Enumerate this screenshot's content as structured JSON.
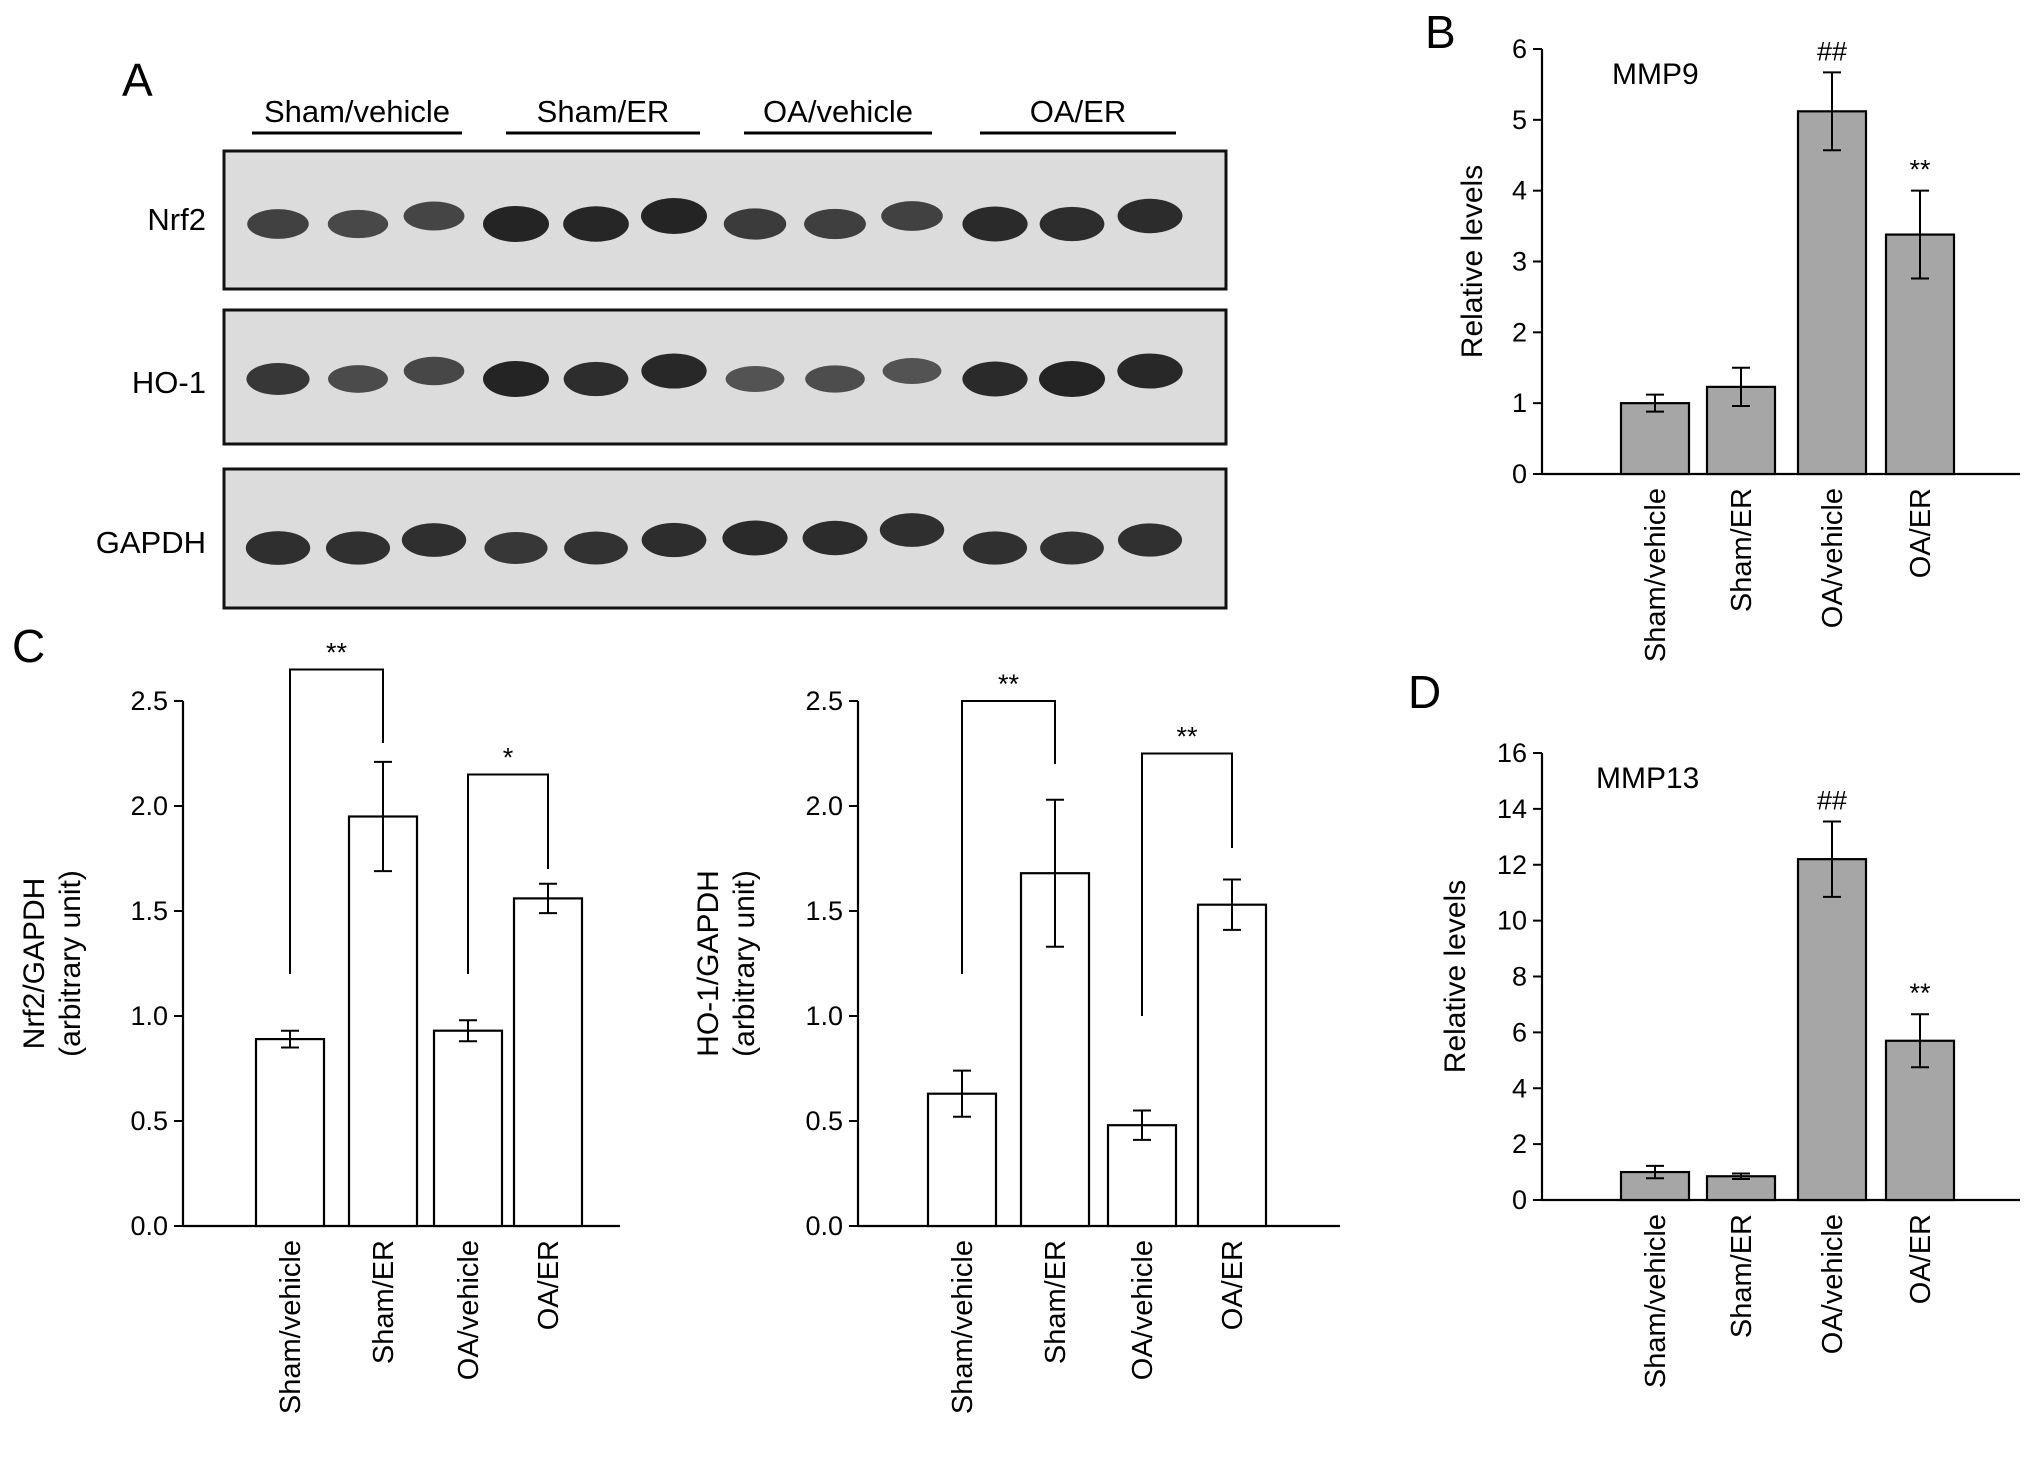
{
  "panels": {
    "a": "A",
    "b": "B",
    "c": "C",
    "d": "D"
  },
  "blot": {
    "groups": [
      "Sham/vehicle",
      "Sham/ER",
      "OA/vehicle",
      "OA/ER"
    ],
    "rows": [
      {
        "name": "Nrf2",
        "intensity": [
          0.72,
          0.65,
          0.68,
          1.0,
          0.98,
          1.0,
          0.78,
          0.74,
          0.72,
          0.95,
          0.92,
          0.93
        ]
      },
      {
        "name": "HO-1",
        "intensity": [
          0.82,
          0.62,
          0.66,
          1.0,
          0.92,
          0.96,
          0.55,
          0.6,
          0.55,
          0.95,
          1.0,
          0.96
        ]
      },
      {
        "name": "GAPDH",
        "intensity": [
          0.9,
          0.88,
          0.9,
          0.82,
          0.86,
          0.92,
          0.95,
          0.93,
          0.9,
          0.88,
          0.86,
          0.88
        ]
      }
    ]
  },
  "chart_data": [
    {
      "id": "mmp9",
      "type": "bar",
      "title": "MMP9",
      "ylabel": "Relative levels",
      "categories": [
        "Sham/vehicle",
        "Sham/ER",
        "OA/vehicle",
        "OA/ER"
      ],
      "values": [
        1.0,
        1.23,
        5.12,
        3.38
      ],
      "errors": [
        0.12,
        0.27,
        0.55,
        0.62
      ],
      "ylim": [
        0,
        6
      ],
      "yticks": [
        "0",
        "1",
        "2",
        "3",
        "4",
        "5",
        "6"
      ],
      "annotations": [
        "",
        "",
        "##",
        "**"
      ],
      "bar_color": "#a6a6a6"
    },
    {
      "id": "mmp13",
      "type": "bar",
      "title": "MMP13",
      "ylabel": "Relative levels",
      "categories": [
        "Sham/vehicle",
        "Sham/ER",
        "OA/vehicle",
        "OA/ER"
      ],
      "values": [
        1.0,
        0.85,
        12.2,
        5.7
      ],
      "errors": [
        0.22,
        0.1,
        1.35,
        0.95
      ],
      "ylim": [
        0,
        16
      ],
      "yticks": [
        "0",
        "2",
        "4",
        "6",
        "8",
        "10",
        "12",
        "14",
        "16"
      ],
      "annotations": [
        "",
        "",
        "##",
        "**"
      ],
      "bar_color": "#a6a6a6"
    },
    {
      "id": "nrf2",
      "type": "bar",
      "title": "",
      "ylabel": "Nrf2/GAPDH",
      "ylabel2": "(arbitrary unit)",
      "categories": [
        "Sham/vehicle",
        "Sham/ER",
        "OA/vehicle",
        "OA/ER"
      ],
      "values": [
        0.89,
        1.95,
        0.93,
        1.56
      ],
      "errors": [
        0.04,
        0.26,
        0.05,
        0.07
      ],
      "ylim": [
        0,
        2.5
      ],
      "yticks": [
        "0.0",
        "0.5",
        "1.0",
        "1.5",
        "2.0",
        "2.5"
      ],
      "brackets": [
        {
          "from": 0,
          "to": 1,
          "label": "**",
          "level": 2.65,
          "from_base": 1.2,
          "to_base": 2.3
        },
        {
          "from": 2,
          "to": 3,
          "label": "*",
          "level": 2.15,
          "from_base": 1.2,
          "to_base": 1.7
        }
      ],
      "bar_color": "#ffffff"
    },
    {
      "id": "ho1",
      "type": "bar",
      "title": "",
      "ylabel": "HO-1/GAPDH",
      "ylabel2": "(arbitrary unit)",
      "categories": [
        "Sham/vehicle",
        "Sham/ER",
        "OA/vehicle",
        "OA/ER"
      ],
      "values": [
        0.63,
        1.68,
        0.48,
        1.53
      ],
      "errors": [
        0.11,
        0.35,
        0.07,
        0.12
      ],
      "ylim": [
        0,
        2.5
      ],
      "yticks": [
        "0.0",
        "0.5",
        "1.0",
        "1.5",
        "2.0",
        "2.5"
      ],
      "brackets": [
        {
          "from": 0,
          "to": 1,
          "label": "**",
          "level": 2.5,
          "from_base": 1.2,
          "to_base": 2.2
        },
        {
          "from": 2,
          "to": 3,
          "label": "**",
          "level": 2.25,
          "from_base": 1.0,
          "to_base": 1.8
        }
      ],
      "bar_color": "#ffffff"
    }
  ]
}
